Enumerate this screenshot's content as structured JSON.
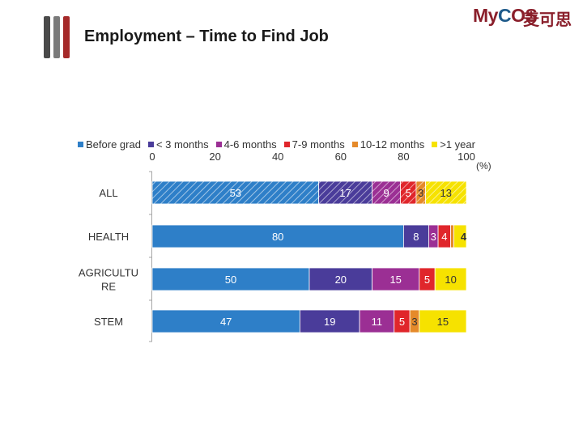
{
  "header": {
    "title": "Employment – Time to Find Job"
  },
  "logo": {
    "brand_prefix": "My",
    "brand_c": "C",
    "brand_suffix": "OS",
    "brand_cn": "麦可思"
  },
  "colors": [
    "#2e7fc8",
    "#4a3c9a",
    "#9b2f94",
    "#e0262b",
    "#e58a2a",
    "#f6e200"
  ],
  "chart_data": {
    "type": "bar",
    "orientation": "horizontal",
    "stacked": true,
    "title": "Employment – Time to Find Job",
    "xlabel": "(%)",
    "ylabel": "",
    "xlim": [
      0,
      100
    ],
    "xticks": [
      0,
      20,
      40,
      60,
      80,
      100
    ],
    "legend_position": "top",
    "categories": [
      "ALL",
      "HEALTH",
      "AGRICULTURE",
      "STEM"
    ],
    "category_labels": [
      "ALL",
      "HEALTH",
      "AGRICULTU\nRE",
      "STEM"
    ],
    "series": [
      {
        "name": "Before grad",
        "values": [
          53,
          80,
          50,
          47
        ],
        "labels": [
          "53",
          "80",
          "50",
          "47"
        ]
      },
      {
        "name": "< 3 months",
        "values": [
          17,
          8,
          20,
          19
        ],
        "labels": [
          "17",
          "8",
          "20",
          "19"
        ]
      },
      {
        "name": "4-6 months",
        "values": [
          9,
          3,
          15,
          11
        ],
        "labels": [
          "9",
          "3",
          "15",
          "11"
        ]
      },
      {
        "name": "7-9 months",
        "values": [
          5,
          4,
          5,
          5
        ],
        "labels": [
          "5",
          "4",
          "5",
          "5"
        ]
      },
      {
        "name": "10-12 months",
        "values": [
          3,
          1,
          0,
          3
        ],
        "labels": [
          "3",
          "",
          "",
          "3"
        ]
      },
      {
        "name": ">1 year",
        "values": [
          13,
          4,
          10,
          15
        ],
        "labels": [
          "13",
          "4",
          "10",
          "15"
        ]
      }
    ],
    "hatched_categories": [
      "ALL"
    ]
  }
}
